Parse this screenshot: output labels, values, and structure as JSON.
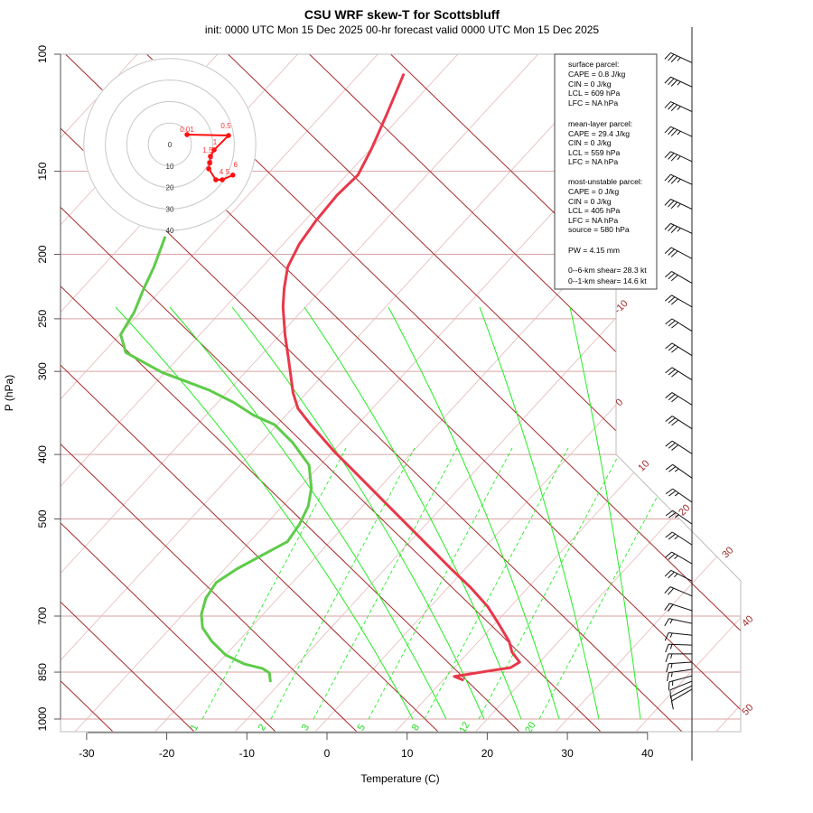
{
  "title": "CSU WRF skew-T for Scottsbluff",
  "subtitle": "init: 0000 UTC Mon 15 Dec 2025    00-hr forecast valid 0000 UTC Mon 15 Dec 2025",
  "info": {
    "lines": [
      "surface parcel:",
      "CAPE = 0.8 J/kg",
      "CIN = 0 J/kg",
      "LCL = 609 hPa",
      "LFC = NA hPa",
      "mean-layer parcel:",
      "CAPE = 29.4 J/kg",
      "CIN = 0 J/kg",
      "LCL = 559 hPa",
      "LFC = NA hPa",
      "most-unstable parcel:",
      "CAPE = 0 J/kg",
      "CIN = 0 J/kg",
      "LCL = 405 hPa",
      "LFC = NA hPa",
      "source = 580 hPa",
      "PW =  4.15 mm",
      "0--6-km shear= 28.3 kt",
      "0--1-km shear= 14.6 kt"
    ]
  },
  "colors": {
    "temperature": "#e8384a",
    "dewpoint": "#5fcb4a",
    "dry_adiabat": "#a52a2a",
    "isotherm": "#e6b8b8",
    "isobar": "#d9a3a3",
    "moist_adiabat": "#22ee22",
    "mixing_ratio": "#22ee22",
    "hodograph": "#ff1010",
    "barb": "#111111"
  },
  "chart_data": {
    "type": "line",
    "title": "CSU WRF skew-T for Scottsbluff",
    "xlabel": "Temperature (C)",
    "ylabel": "P (hPa)",
    "xlim": [
      -33,
      50
    ],
    "ylim": [
      1000,
      100
    ],
    "x_ticks": [
      "-30",
      "-20",
      "-10",
      "0",
      "10",
      "20",
      "30",
      "40"
    ],
    "x_tick_values": [
      -30,
      -20,
      -10,
      0,
      10,
      20,
      30,
      40
    ],
    "y_ticks": [
      "100",
      "150",
      "200",
      "250",
      "300",
      "400",
      "500",
      "700",
      "850",
      "1000"
    ],
    "y_tick_values": [
      100,
      150,
      200,
      250,
      300,
      400,
      500,
      700,
      850,
      1000
    ],
    "isotherm_labels": [
      "-10",
      "0",
      "10",
      "20",
      "30",
      "40",
      "50"
    ],
    "mixing_ratio_labels": [
      "1",
      "2",
      "3",
      "5",
      "8",
      "12",
      "20"
    ],
    "series": [
      {
        "name": "temperature",
        "points": [
          [
            874,
            12.6
          ],
          [
            863,
            11.0
          ],
          [
            845,
            15.0
          ],
          [
            837,
            17.0
          ],
          [
            821,
            17.5
          ],
          [
            793,
            15.4
          ],
          [
            764,
            13.8
          ],
          [
            718,
            10.4
          ],
          [
            678,
            7.2
          ],
          [
            633,
            2.7
          ],
          [
            595,
            -1.7
          ],
          [
            559,
            -6.0
          ],
          [
            517,
            -11.4
          ],
          [
            478,
            -16.8
          ],
          [
            435,
            -23.3
          ],
          [
            396,
            -29.8
          ],
          [
            361,
            -35.8
          ],
          [
            341,
            -39.3
          ],
          [
            323,
            -41.7
          ],
          [
            290,
            -45.8
          ],
          [
            264,
            -49.4
          ],
          [
            240,
            -52.8
          ],
          [
            225,
            -54.8
          ],
          [
            209,
            -56.8
          ],
          [
            193,
            -58.0
          ],
          [
            178,
            -58.6
          ],
          [
            163,
            -58.9
          ],
          [
            152,
            -58.6
          ],
          [
            139,
            -59.9
          ],
          [
            123,
            -62.0
          ],
          [
            107,
            -64.5
          ]
        ]
      },
      {
        "name": "dewpoint",
        "points": [
          [
            880,
            -11.3
          ],
          [
            852,
            -12.5
          ],
          [
            839,
            -13.9
          ],
          [
            826,
            -16.7
          ],
          [
            801,
            -20.0
          ],
          [
            764,
            -23.3
          ],
          [
            729,
            -26.0
          ],
          [
            696,
            -27.7
          ],
          [
            658,
            -29.0
          ],
          [
            623,
            -29.5
          ],
          [
            595,
            -28.5
          ],
          [
            567,
            -26.9
          ],
          [
            541,
            -25.3
          ],
          [
            509,
            -25.8
          ],
          [
            478,
            -26.8
          ],
          [
            449,
            -28.5
          ],
          [
            415,
            -31.4
          ],
          [
            384,
            -36.0
          ],
          [
            361,
            -40.3
          ],
          [
            349,
            -44.1
          ],
          [
            334,
            -48.0
          ],
          [
            320,
            -52.5
          ],
          [
            301,
            -60.4
          ],
          [
            281,
            -67.2
          ],
          [
            264,
            -69.9
          ],
          [
            244,
            -70.8
          ],
          [
            225,
            -72.3
          ],
          [
            209,
            -73.5
          ],
          [
            188,
            -75.6
          ]
        ]
      }
    ],
    "wind_barbs": [
      {
        "p": 103,
        "dir": 295,
        "kt": 35
      },
      {
        "p": 112,
        "dir": 295,
        "kt": 35
      },
      {
        "p": 122,
        "dir": 295,
        "kt": 35
      },
      {
        "p": 133,
        "dir": 295,
        "kt": 35
      },
      {
        "p": 145,
        "dir": 295,
        "kt": 35
      },
      {
        "p": 157,
        "dir": 295,
        "kt": 35
      },
      {
        "p": 171,
        "dir": 295,
        "kt": 35
      },
      {
        "p": 186,
        "dir": 295,
        "kt": 35
      },
      {
        "p": 203,
        "dir": 298,
        "kt": 30
      },
      {
        "p": 221,
        "dir": 300,
        "kt": 30
      },
      {
        "p": 240,
        "dir": 300,
        "kt": 30
      },
      {
        "p": 261,
        "dir": 302,
        "kt": 30
      },
      {
        "p": 284,
        "dir": 302,
        "kt": 30
      },
      {
        "p": 309,
        "dir": 302,
        "kt": 30
      },
      {
        "p": 337,
        "dir": 302,
        "kt": 30
      },
      {
        "p": 366,
        "dir": 303,
        "kt": 30
      },
      {
        "p": 399,
        "dir": 303,
        "kt": 30
      },
      {
        "p": 434,
        "dir": 305,
        "kt": 25
      },
      {
        "p": 472,
        "dir": 305,
        "kt": 25
      },
      {
        "p": 509,
        "dir": 305,
        "kt": 25
      },
      {
        "p": 547,
        "dir": 303,
        "kt": 25
      },
      {
        "p": 584,
        "dir": 300,
        "kt": 25
      },
      {
        "p": 620,
        "dir": 297,
        "kt": 25
      },
      {
        "p": 653,
        "dir": 293,
        "kt": 20
      },
      {
        "p": 687,
        "dir": 288,
        "kt": 20
      },
      {
        "p": 718,
        "dir": 282,
        "kt": 15
      },
      {
        "p": 748,
        "dir": 276,
        "kt": 15
      },
      {
        "p": 774,
        "dir": 272,
        "kt": 15
      },
      {
        "p": 798,
        "dir": 270,
        "kt": 15
      },
      {
        "p": 821,
        "dir": 266,
        "kt": 15
      },
      {
        "p": 842,
        "dir": 262,
        "kt": 15
      },
      {
        "p": 861,
        "dir": 255,
        "kt": 15
      },
      {
        "p": 877,
        "dir": 248,
        "kt": 10
      },
      {
        "p": 891,
        "dir": 243,
        "kt": 10
      },
      {
        "p": 902,
        "dir": 240,
        "kt": 10
      }
    ],
    "hodograph": {
      "ring_labels": [
        "0",
        "10",
        "20",
        "30",
        "40"
      ],
      "ring_values": [
        0,
        10,
        20,
        30,
        40
      ],
      "points": [
        {
          "label": "0.01",
          "u": 8.0,
          "v": 4.6
        },
        {
          "label": "0.5",
          "u": 27.3,
          "v": 4.2
        },
        {
          "label": "1",
          "u": 20.6,
          "v": -2.5
        },
        {
          "label": "1.5",
          "u": 18.9,
          "v": -5.5
        },
        {
          "label": "2",
          "u": 18.5,
          "v": -8.4
        },
        {
          "label": "3",
          "u": 18.1,
          "v": -11.3
        },
        {
          "label": "4",
          "u": 21.4,
          "v": -16.4
        },
        {
          "label": "5",
          "u": 24.4,
          "v": -16.4
        },
        {
          "label": "6",
          "u": 29.3,
          "v": -14.2
        }
      ]
    }
  }
}
